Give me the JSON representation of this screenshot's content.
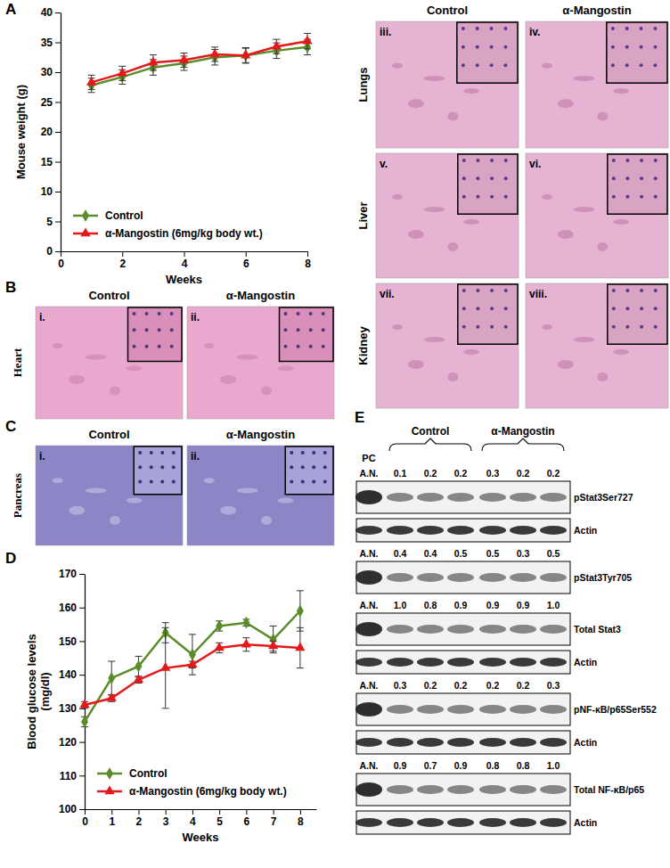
{
  "panel_labels": [
    "A",
    "B",
    "C",
    "D",
    "E"
  ],
  "chart_data": [
    {
      "type": "line",
      "xlabel": "Weeks",
      "ylabel": [
        "Mouse weight (g)"
      ],
      "x": [
        1,
        2,
        3,
        4,
        5,
        6,
        7,
        8
      ],
      "xlim": [
        0,
        8
      ],
      "xticks": [
        0,
        2,
        4,
        6,
        8
      ],
      "ylim": [
        0,
        40
      ],
      "yticks": [
        0,
        5,
        10,
        15,
        20,
        25,
        30,
        35,
        40
      ],
      "legend": "lower left",
      "series": [
        {
          "name": "Control",
          "color": "#5b8c2a",
          "marker": "diamond",
          "values": [
            27.8,
            29.2,
            30.8,
            31.5,
            32.5,
            32.8,
            33.6,
            34.2
          ],
          "errors": [
            1.2,
            1.2,
            1.3,
            1.2,
            1.3,
            1.2,
            1.3,
            1.3
          ]
        },
        {
          "name": "α-Mangostin (6mg/kg body wt.)",
          "color": "#e31a1c",
          "marker": "triangle",
          "values": [
            28.3,
            29.8,
            31.6,
            32,
            33,
            32.8,
            34.3,
            35.2
          ],
          "errors": [
            1.2,
            1.2,
            1.3,
            1.2,
            1.2,
            1.3,
            1.2,
            1.3
          ]
        }
      ]
    },
    {
      "type": "line",
      "xlabel": "Weeks",
      "ylabel": [
        "Blood glucose levels",
        "(mg/dl)"
      ],
      "x": [
        0,
        1,
        2,
        3,
        4,
        5,
        6,
        7,
        8
      ],
      "xlim": [
        0,
        8.6
      ],
      "xticks": [
        0,
        1,
        2,
        3,
        4,
        5,
        6,
        7,
        8
      ],
      "ylim": [
        100,
        170
      ],
      "yticks": [
        100,
        110,
        120,
        130,
        140,
        150,
        160,
        170
      ],
      "legend": "lower left",
      "series": [
        {
          "name": "Control",
          "color": "#5b8c2a",
          "marker": "diamond",
          "values": [
            126,
            139,
            142.5,
            152.5,
            146,
            154.5,
            155.5,
            150.5,
            159
          ],
          "errors": [
            1.5,
            5,
            3,
            3,
            6,
            1.5,
            1,
            4,
            6
          ]
        },
        {
          "name": "α-Mangostin (6mg/kg body wt.)",
          "color": "#e31a1c",
          "marker": "triangle",
          "values": [
            131,
            133,
            138.5,
            142,
            143,
            148,
            149,
            148.5,
            148
          ],
          "errors": [
            1,
            1,
            1,
            12,
            1,
            1.5,
            2,
            1.5,
            6
          ]
        }
      ]
    }
  ],
  "histology": {
    "organs": {
      "columns": [
        "Control",
        "α-Mangostin"
      ],
      "rows": [
        {
          "organ": "Lungs",
          "panels": [
            "iii.",
            "iv."
          ]
        },
        {
          "organ": "Liver",
          "panels": [
            "v.",
            "vi."
          ]
        },
        {
          "organ": "Kidney",
          "panels": [
            "vii.",
            "viii."
          ]
        }
      ]
    },
    "heart": {
      "columns": [
        "Control",
        "α-Mangostin"
      ],
      "rows": [
        {
          "organ": "Heart",
          "panels": [
            "i.",
            "ii."
          ]
        }
      ]
    },
    "pancreas": {
      "columns": [
        "Control",
        "α-Mangostin"
      ],
      "rows": [
        {
          "organ": "Pancreas",
          "panels": [
            "i.",
            "ii."
          ]
        }
      ]
    }
  },
  "blot": {
    "pc": "PC",
    "groups": [
      "Control",
      "α-Mangostin"
    ],
    "rows": [
      {
        "numbers": [
          "A.N.",
          "0.1",
          "0.2",
          "0.2",
          "0.3",
          "0.2",
          "0.2"
        ],
        "label": "pStat3Ser727"
      },
      {
        "label": "Actin"
      },
      {
        "numbers": [
          "A.N.",
          "0.4",
          "0.4",
          "0.5",
          "0.5",
          "0.3",
          "0.5"
        ],
        "label": "pStat3Tyr705"
      },
      {
        "numbers": [
          "A.N.",
          "1.0",
          "0.8",
          "0.9",
          "0.9",
          "0.9",
          "1.0"
        ],
        "label": "Total Stat3"
      },
      {
        "label": "Actin"
      },
      {
        "numbers": [
          "A.N.",
          "0.3",
          "0.2",
          "0.2",
          "0.2",
          "0.2",
          "0.3"
        ],
        "label": "pNF-κB/p65Ser552"
      },
      {
        "label": "Actin"
      },
      {
        "numbers": [
          "A.N.",
          "0.9",
          "0.7",
          "0.9",
          "0.8",
          "0.8",
          "1.0"
        ],
        "label": "Total NF-κB/p65"
      },
      {
        "label": "Actin"
      }
    ]
  }
}
